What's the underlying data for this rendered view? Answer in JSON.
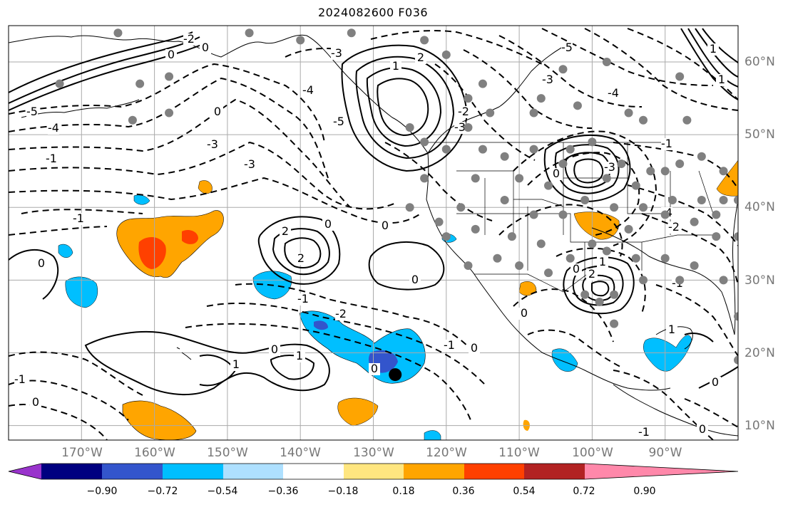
{
  "title": "2024082600 F036",
  "map": {
    "projection": "plate-carree",
    "lon_range": [
      -180,
      -80
    ],
    "lat_range": [
      8,
      65
    ],
    "lat_labels": [
      "60°N",
      "50°N",
      "40°N",
      "30°N",
      "20°N",
      "10°N"
    ],
    "lat_values": [
      60,
      50,
      40,
      30,
      20,
      10
    ],
    "lon_labels": [
      "170°W",
      "160°W",
      "150°W",
      "140°W",
      "130°W",
      "120°W",
      "110°W",
      "100°W",
      "90°W"
    ],
    "lon_values": [
      -170,
      -160,
      -150,
      -140,
      -130,
      -120,
      -110,
      -100,
      -90
    ],
    "marker_color": "#808080",
    "cyclone_marker": {
      "lon": -127,
      "lat": 17,
      "color": "#000000"
    },
    "contour_labels": [
      "-1",
      "-2",
      "-3",
      "-4",
      "-5",
      "0",
      "1",
      "2"
    ]
  },
  "colorbar": {
    "colors": [
      "#9933cc",
      "#000080",
      "#3355cc",
      "#00bfff",
      "#aee0ff",
      "#ffffff",
      "#ffe680",
      "#ffa500",
      "#ff4000",
      "#b22222",
      "#ff88aa"
    ],
    "ticks": [
      "−0.90",
      "−0.72",
      "−0.54",
      "−0.36",
      "−0.18",
      "0.18",
      "0.36",
      "0.54",
      "0.72",
      "0.90"
    ]
  }
}
